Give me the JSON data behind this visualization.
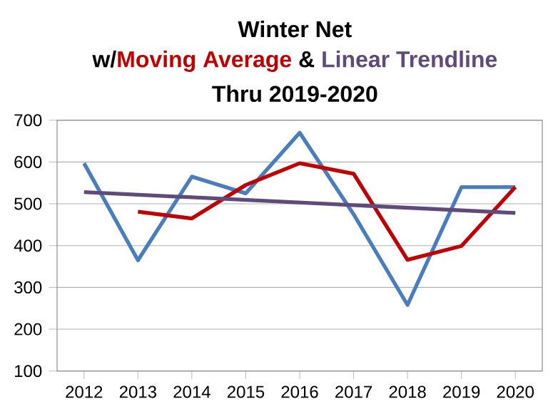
{
  "chart_data": {
    "type": "line",
    "title": "Winter Net",
    "subtitle": "Thru 2019-2020",
    "annotations": [
      "w/",
      "&"
    ],
    "x": [
      2012,
      2013,
      2014,
      2015,
      2016,
      2017,
      2018,
      2019,
      2020
    ],
    "series": [
      {
        "color": "#4a7ebb",
        "values": [
          597,
          365,
          565,
          525,
          670,
          475,
          258,
          540,
          540
        ]
      },
      {
        "name": "Moving Average",
        "color": "#c00000",
        "x": [
          2013,
          2014,
          2015,
          2016,
          2017,
          2018,
          2019,
          2020
        ],
        "values": [
          481,
          465,
          545,
          597,
          572,
          366,
          399,
          540
        ]
      },
      {
        "name": "Linear Trendline",
        "color": "#604a7b",
        "x": [
          2012,
          2020
        ],
        "values": [
          528,
          478
        ]
      }
    ],
    "xlim": [
      2011.5,
      2020.5
    ],
    "ylim": [
      100,
      700
    ],
    "xticks": [
      2012,
      2013,
      2014,
      2015,
      2016,
      2017,
      2018,
      2019,
      2020
    ],
    "yticks": [
      100,
      200,
      300,
      400,
      500,
      600,
      700
    ],
    "grid": "y",
    "legend": false,
    "marker": "none",
    "line_style": "solid"
  }
}
